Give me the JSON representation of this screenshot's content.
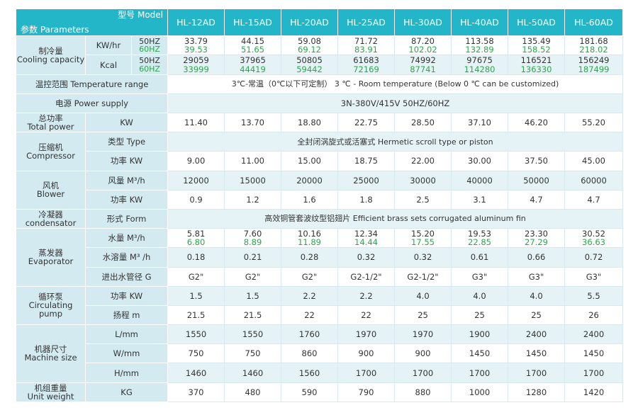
{
  "header": {
    "model_label": "型号 Model",
    "parameters_label": "参数 Parameters",
    "models": [
      "HL-12AD",
      "HL-15AD",
      "HL-20AD",
      "HL-25AD",
      "HL-30AD",
      "HL-40AD",
      "HL-50AD",
      "HL-60AD"
    ]
  },
  "cooling": {
    "label_cn": "制冷量",
    "label_en": "Cooling capacity",
    "kw_unit": "KW/hr",
    "kcal_unit": "Kcal",
    "hz50": "50HZ",
    "hz60": "60HZ",
    "kw_50": [
      "33.79",
      "44.15",
      "59.08",
      "71.72",
      "87.20",
      "113.58",
      "135.49",
      "181.68"
    ],
    "kw_60": [
      "39.53",
      "51.65",
      "69.12",
      "83.91",
      "102.02",
      "132.89",
      "158.52",
      "218.02"
    ],
    "kcal_50": [
      "29059",
      "37965",
      "50805",
      "61683",
      "74992",
      "97675",
      "116521",
      "156249"
    ],
    "kcal_60": [
      "33999",
      "44419",
      "59442",
      "72169",
      "87741",
      "114280",
      "136330",
      "187499"
    ]
  },
  "temperature": {
    "label": "温控范围 Temperature range",
    "value": "3℃-常温（0℃以下可定制） 3 ℃ - Room temperature (Below 0 ℃ can be customized)"
  },
  "power_supply": {
    "label": "电源 Power supply",
    "value": "3N-380V/415V 50HZ/60HZ"
  },
  "total_power": {
    "label_cn": "总功率",
    "label_en": "Total power",
    "unit": "KW",
    "values": [
      "11.40",
      "13.70",
      "18.80",
      "22.75",
      "28.50",
      "37.10",
      "46.20",
      "55.20"
    ]
  },
  "compressor": {
    "label_cn": "压缩机",
    "label_en": "Compressor",
    "type_label": "类型 Type",
    "type_value": "全封闭涡旋式或活塞式 Hermetic scroll type or piston",
    "power_label": "功率 KW",
    "power_values": [
      "9.00",
      "11.00",
      "15.00",
      "18.75",
      "22.00",
      "30.00",
      "37.50",
      "45.00"
    ]
  },
  "blower": {
    "label_cn": "风机",
    "label_en": "Blower",
    "air_label": "风量 M³/h",
    "air_values": [
      "12000",
      "15000",
      "20000",
      "25000",
      "30000",
      "40000",
      "50000",
      "60000"
    ],
    "power_label": "功率 KW",
    "power_values": [
      "0.9",
      "1.2",
      "1.6",
      "1.8",
      "2.5",
      "3.1",
      "4.7",
      "4.7"
    ]
  },
  "condenser": {
    "label_cn": "冷凝器",
    "label_en": "condensator",
    "form_label": "形式 Form",
    "form_value": "高效铜管套波纹型铝翅片 Efficient brass sets corrugated aluminum fin"
  },
  "evaporator": {
    "label_cn": "蒸发器",
    "label_en": "Evaporator",
    "water_label": "水量 M³/h",
    "water_50": [
      "5.81",
      "7.60",
      "10.16",
      "12.34",
      "15.20",
      "19.53",
      "23.30",
      "30.52"
    ],
    "water_60": [
      "6.80",
      "8.89",
      "11.89",
      "14.44",
      "17.55",
      "22.85",
      "27.29",
      "36.63"
    ],
    "vol_label": "水溶量 M³ /h",
    "vol_values": [
      "0.18",
      "0.21",
      "0.28",
      "0.32",
      "0.32",
      "0.61",
      "0.66",
      "0.72"
    ],
    "pipe_label": "进出水管径 G",
    "pipe_values": [
      "G2\"",
      "G2\"",
      "G2\"",
      "G2-1/2\"",
      "G2-1/2\"",
      "G3\"",
      "G3\"",
      "G3\""
    ]
  },
  "pump": {
    "label_cn": "循环泵",
    "label_en": "Circulating pump",
    "power_label": "功率 KW",
    "power_values": [
      "1.5",
      "1.5",
      "2.2",
      "2.2",
      "4.0",
      "4.0",
      "4.0",
      "5.5"
    ],
    "head_label": "扬程 m",
    "head_values": [
      "21.5",
      "21.5",
      "22",
      "22",
      "25",
      "25",
      "25",
      "26"
    ]
  },
  "size": {
    "label_cn": "机器尺寸",
    "label_en": "Machine size",
    "l_label": "L/mm",
    "l_values": [
      "1550",
      "1550",
      "1760",
      "1970",
      "1970",
      "1900",
      "2400",
      "2400"
    ],
    "w_label": "W/mm",
    "w_values": [
      "750",
      "750",
      "860",
      "900",
      "900",
      "1450",
      "1450",
      "1450"
    ],
    "h_label": "H/mm",
    "h_values": [
      "1460",
      "1460",
      "1560",
      "1700",
      "1700",
      "1700",
      "1700",
      "1700"
    ]
  },
  "weight": {
    "label_cn": "机组重量",
    "label_en": "Unit weight",
    "unit": "KG",
    "values": [
      "370",
      "480",
      "590",
      "790",
      "880",
      "1000",
      "1280",
      "1420"
    ]
  },
  "colors": {
    "header": "#22b6c8",
    "label_bg": "#d2eaf0",
    "alt_row": "#e6f3f6",
    "green_text": "#2aa84a"
  }
}
